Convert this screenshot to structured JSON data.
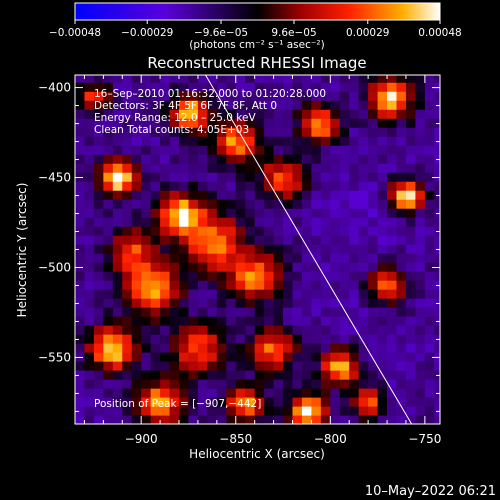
{
  "chart_data": {
    "type": "heatmap",
    "title": "Reconstructed RHESSI Image",
    "xlabel": "Heliocentric X (arcsec)",
    "ylabel": "Heliocentric Y (arcsec)",
    "xlim": [
      -935,
      -742
    ],
    "ylim": [
      -587,
      -393
    ],
    "x_ticks": [
      -900,
      -850,
      -800,
      -750
    ],
    "y_ticks": [
      -400,
      -450,
      -500,
      -550
    ],
    "x_tick_labels": [
      "−900",
      "−850",
      "−800",
      "−750"
    ],
    "y_tick_labels": [
      "−400",
      "−450",
      "−500",
      "−550"
    ],
    "colorbar": {
      "range": [
        -0.00048,
        0.00048
      ],
      "tick_values": [
        -0.00048,
        -0.00029,
        -9.6e-05,
        9.6e-05,
        0.00029,
        0.00048
      ],
      "tick_labels": [
        "−0.00048",
        "−0.00029",
        "−9.6e−05",
        "9.6e−05",
        "0.00029",
        "0.00048"
      ],
      "unit_label": "(photons cm⁻² s⁻¹ asec⁻²)"
    },
    "annotations": [
      "16–Sep–2010 01:16:32.000 to 01:20:28.000",
      "Detectors: 3F 4F 5F 6F 7F 8F, Att 0",
      "Energy Range: 12.0 – 25.0 keV",
      "Clean    Total counts: 4.05E+03"
    ],
    "peak_label": "Position of Peak = [−907,−442]",
    "peak": [
      -907,
      -442
    ],
    "limb_line": [
      [
        -866,
        -393
      ],
      [
        -757,
        -587
      ]
    ],
    "hotspots": [
      {
        "x": -912,
        "y": -450,
        "v": 1.0,
        "r": 10
      },
      {
        "x": -894,
        "y": -512,
        "v": 0.85,
        "r": 14
      },
      {
        "x": -874,
        "y": -414,
        "v": 0.9,
        "r": 10
      },
      {
        "x": -880,
        "y": -470,
        "v": 0.85,
        "r": 12
      },
      {
        "x": -862,
        "y": -485,
        "v": 0.65,
        "r": 16
      },
      {
        "x": -850,
        "y": -430,
        "v": 0.7,
        "r": 12
      },
      {
        "x": -840,
        "y": -505,
        "v": 0.65,
        "r": 14
      },
      {
        "x": -825,
        "y": -450,
        "v": 0.55,
        "r": 12
      },
      {
        "x": -806,
        "y": -420,
        "v": 0.75,
        "r": 10
      },
      {
        "x": -768,
        "y": -405,
        "v": 0.85,
        "r": 12
      },
      {
        "x": -760,
        "y": -460,
        "v": 0.95,
        "r": 9
      },
      {
        "x": -770,
        "y": -510,
        "v": 0.6,
        "r": 10
      },
      {
        "x": -915,
        "y": -545,
        "v": 0.95,
        "r": 12
      },
      {
        "x": -890,
        "y": -575,
        "v": 0.8,
        "r": 12
      },
      {
        "x": -870,
        "y": -545,
        "v": 0.55,
        "r": 14
      },
      {
        "x": -845,
        "y": -575,
        "v": 0.7,
        "r": 10
      },
      {
        "x": -830,
        "y": -545,
        "v": 0.6,
        "r": 12
      },
      {
        "x": -812,
        "y": -580,
        "v": 1.0,
        "r": 10
      },
      {
        "x": -795,
        "y": -555,
        "v": 0.8,
        "r": 10
      },
      {
        "x": -780,
        "y": -575,
        "v": 0.65,
        "r": 8
      },
      {
        "x": -925,
        "y": -405,
        "v": 0.5,
        "r": 8
      },
      {
        "x": -905,
        "y": -490,
        "v": 0.5,
        "r": 12
      }
    ],
    "coldspots": [
      {
        "x": -780,
        "y": -470,
        "v": -0.4,
        "r": 22
      },
      {
        "x": -790,
        "y": -530,
        "v": -0.35,
        "r": 24
      },
      {
        "x": -800,
        "y": -470,
        "v": -0.35,
        "r": 16
      },
      {
        "x": -760,
        "y": -545,
        "v": -0.35,
        "r": 16
      },
      {
        "x": -890,
        "y": -400,
        "v": -0.3,
        "r": 10
      }
    ]
  },
  "footer": {
    "timestamp": "10–May–2022 06:21"
  }
}
